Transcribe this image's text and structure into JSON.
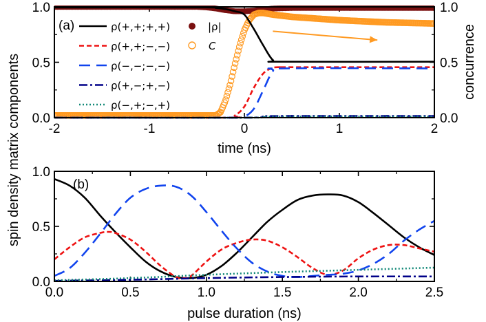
{
  "chart_data": [
    {
      "panel": "(a)",
      "type": "line",
      "xlabel": "time (ns)",
      "ylabel": "spin density matrix components",
      "y2label": "concurrence",
      "xlim": [
        -2,
        2
      ],
      "ylim": [
        0,
        1
      ],
      "y2lim": [
        0,
        1
      ],
      "xticks": [
        "-2",
        "-1",
        "0",
        "1",
        "2"
      ],
      "yticks": [
        "0.0",
        "0.5",
        "1.0"
      ],
      "y2ticks": [
        "0.0",
        "0.5",
        "1.0"
      ],
      "colors": {
        "rho_pppp": "#000000",
        "rho_ppmm": "#ee1111",
        "rho_mmmm": "#1144ee",
        "rho_pmpm": "#000088",
        "rho_mpmp": "#118877",
        "abs_rho": "#7a1010",
        "concurrence": "#ff9a22"
      },
      "series": [
        {
          "name": "ρ(+,+;+,+)",
          "style": "solid",
          "x": [
            -2,
            -0.4,
            -0.3,
            -0.2,
            -0.1,
            0.0,
            0.1,
            0.2,
            0.3,
            0.4,
            2.0
          ],
          "y": [
            0.995,
            0.995,
            0.99,
            0.98,
            0.96,
            0.93,
            0.8,
            0.65,
            0.52,
            0.505,
            0.505
          ]
        },
        {
          "name": "ρ(+,+;−,−)",
          "style": "dash",
          "x": [
            -2,
            -0.2,
            -0.1,
            0.0,
            0.1,
            0.2,
            0.3,
            0.4,
            0.5,
            2.0
          ],
          "y": [
            0.0,
            0.0,
            0.02,
            0.1,
            0.27,
            0.4,
            0.45,
            0.455,
            0.455,
            0.455
          ]
        },
        {
          "name": "ρ(−,−;−,−)",
          "style": "longdash",
          "x": [
            -2,
            -0.1,
            0.0,
            0.1,
            0.2,
            0.3,
            0.4,
            2.0
          ],
          "y": [
            0.0,
            0.0,
            0.01,
            0.08,
            0.25,
            0.42,
            0.445,
            0.445
          ]
        },
        {
          "name": "ρ(+,−;+,−)",
          "style": "dashdot",
          "x": [
            -2,
            0.0,
            0.2,
            0.4,
            2.0
          ],
          "y": [
            0.0,
            0.0,
            0.01,
            0.015,
            0.015
          ]
        },
        {
          "name": "ρ(−,+;−,+)",
          "style": "dot",
          "x": [
            -2,
            0.0,
            0.2,
            0.4,
            2.0
          ],
          "y": [
            0.0,
            0.0,
            0.005,
            0.01,
            0.01
          ]
        },
        {
          "name": "|ρ|",
          "style": "filled-circle",
          "axis": "left",
          "x": [
            -2,
            -0.5,
            -0.4,
            -0.3,
            -0.2,
            -0.1,
            0.0,
            0.1,
            0.2,
            0.3,
            0.5,
            2.0
          ],
          "y": [
            1.0,
            1.0,
            0.995,
            0.985,
            0.97,
            0.96,
            0.96,
            0.965,
            0.975,
            0.985,
            0.99,
            0.99
          ]
        },
        {
          "name": "C",
          "style": "open-circle",
          "axis": "right",
          "x": [
            -2,
            -0.3,
            -0.25,
            -0.2,
            -0.15,
            -0.1,
            -0.05,
            0.0,
            0.05,
            0.1,
            0.15,
            0.2,
            0.3,
            0.5,
            1.0,
            1.5,
            2.0
          ],
          "y": [
            0.02,
            0.02,
            0.05,
            0.15,
            0.3,
            0.48,
            0.65,
            0.79,
            0.88,
            0.93,
            0.945,
            0.945,
            0.93,
            0.91,
            0.88,
            0.86,
            0.85
          ]
        }
      ],
      "annotation": {
        "type": "arrow",
        "from": [
          0.3,
          0.78
        ],
        "to": [
          1.4,
          0.7
        ]
      }
    },
    {
      "panel": "(b)",
      "type": "line",
      "xlabel": "pulse duration (ns)",
      "ylabel": "spin density matrix components",
      "xlim": [
        0,
        2.5
      ],
      "ylim": [
        0,
        1
      ],
      "xticks": [
        "0.0",
        "0.5",
        "1.0",
        "1.5",
        "2.0",
        "2.5"
      ],
      "yticks": [
        "0.0",
        "0.5",
        "1.0"
      ],
      "series": [
        {
          "name": "ρ(+,+;+,+)",
          "style": "solid",
          "x": [
            0,
            0.1,
            0.2,
            0.3,
            0.4,
            0.5,
            0.6,
            0.7,
            0.8,
            0.9,
            1.0,
            1.1,
            1.2,
            1.3,
            1.4,
            1.5,
            1.6,
            1.7,
            1.8,
            1.9,
            2.0,
            2.1,
            2.2,
            2.3,
            2.4,
            2.5
          ],
          "y": [
            0.93,
            0.87,
            0.76,
            0.6,
            0.45,
            0.31,
            0.18,
            0.09,
            0.04,
            0.03,
            0.06,
            0.14,
            0.26,
            0.4,
            0.54,
            0.65,
            0.74,
            0.78,
            0.79,
            0.78,
            0.72,
            0.62,
            0.51,
            0.4,
            0.31,
            0.24
          ]
        },
        {
          "name": "ρ(+,+;−,−)",
          "style": "dash",
          "x": [
            0,
            0.1,
            0.2,
            0.3,
            0.35,
            0.4,
            0.5,
            0.6,
            0.7,
            0.8,
            0.85,
            0.9,
            1.0,
            1.1,
            1.2,
            1.3,
            1.4,
            1.5,
            1.6,
            1.7,
            1.8,
            1.9,
            2.0,
            2.1,
            2.2,
            2.3,
            2.4,
            2.5
          ],
          "y": [
            0.2,
            0.31,
            0.4,
            0.44,
            0.45,
            0.44,
            0.38,
            0.27,
            0.14,
            0.04,
            0.03,
            0.05,
            0.18,
            0.29,
            0.35,
            0.38,
            0.37,
            0.31,
            0.22,
            0.12,
            0.06,
            0.1,
            0.21,
            0.29,
            0.33,
            0.33,
            0.3,
            0.27
          ]
        },
        {
          "name": "ρ(−,−;−,−)",
          "style": "longdash",
          "x": [
            0,
            0.1,
            0.2,
            0.3,
            0.4,
            0.5,
            0.6,
            0.7,
            0.8,
            0.9,
            1.0,
            1.1,
            1.2,
            1.3,
            1.4,
            1.5,
            1.6,
            1.7,
            1.8,
            1.9,
            2.0,
            2.1,
            2.2,
            2.3,
            2.4,
            2.5
          ],
          "y": [
            0.05,
            0.12,
            0.26,
            0.43,
            0.61,
            0.76,
            0.84,
            0.87,
            0.86,
            0.78,
            0.63,
            0.46,
            0.3,
            0.17,
            0.09,
            0.05,
            0.04,
            0.05,
            0.06,
            0.07,
            0.1,
            0.16,
            0.25,
            0.37,
            0.47,
            0.55
          ]
        },
        {
          "name": "ρ(+,−;+,−)",
          "style": "dashdot",
          "x": [
            0,
            0.5,
            1.0,
            1.5,
            2.0,
            2.5
          ],
          "y": [
            0.005,
            0.015,
            0.03,
            0.04,
            0.045,
            0.045
          ]
        },
        {
          "name": "ρ(−,+;−,+)",
          "style": "dot",
          "x": [
            0,
            0.5,
            1.0,
            1.5,
            2.0,
            2.5
          ],
          "y": [
            0.01,
            0.03,
            0.06,
            0.085,
            0.105,
            0.125
          ]
        }
      ]
    }
  ]
}
